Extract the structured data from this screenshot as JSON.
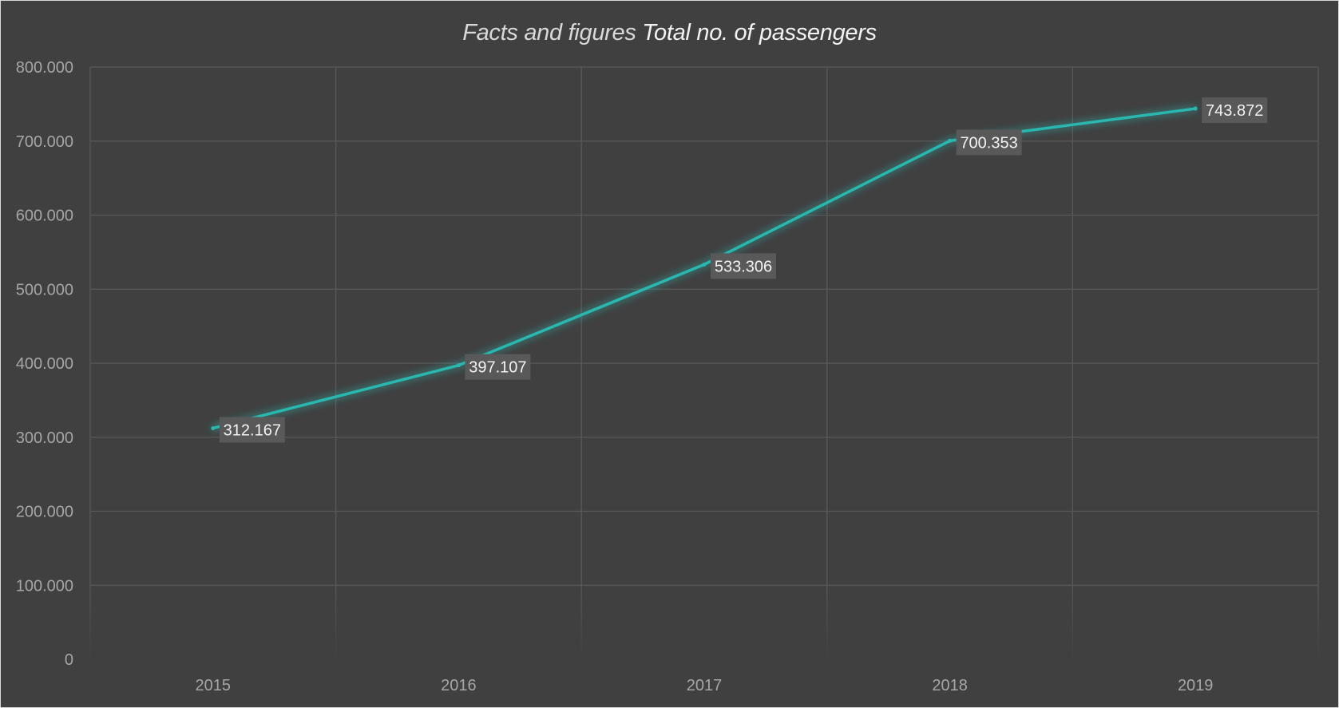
{
  "title": {
    "prefix": "Facts and figures",
    "emphasis": "Total no. of passengers"
  },
  "colors": {
    "background": "#404040",
    "line": "#2ab7b0",
    "grid": "#595959",
    "label_box": "#595959"
  },
  "chart_data": {
    "type": "line",
    "categories": [
      "2015",
      "2016",
      "2017",
      "2018",
      "2019"
    ],
    "series": [
      {
        "values": [
          312167,
          397107,
          533306,
          700353,
          743872
        ]
      }
    ],
    "data_labels": [
      "312.167",
      "397.107",
      "533.306",
      "700.353",
      "743.872"
    ],
    "ylim": [
      0,
      800000
    ],
    "yticks": [
      0,
      100000,
      200000,
      300000,
      400000,
      500000,
      600000,
      700000,
      800000
    ],
    "ytick_labels": [
      "0",
      "100.000",
      "200.000",
      "300.000",
      "400.000",
      "500.000",
      "600.000",
      "700.000",
      "800.000"
    ],
    "grid": true,
    "legend": "none"
  }
}
